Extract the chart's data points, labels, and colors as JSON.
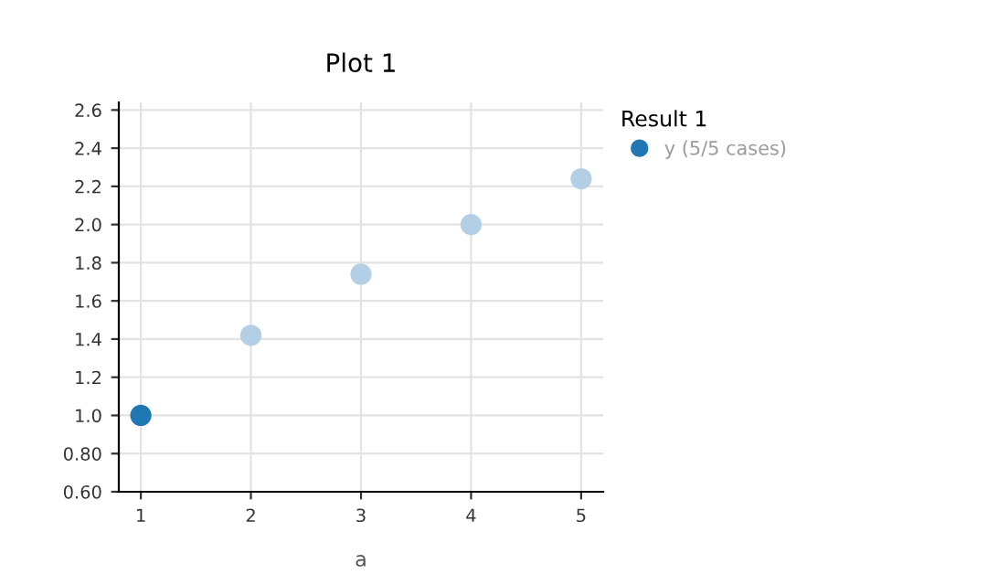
{
  "chart_data": {
    "type": "scatter",
    "title": "Plot 1",
    "xlabel": "a",
    "legend_title": "Result 1",
    "x": [
      1,
      2,
      3,
      4,
      5
    ],
    "series": [
      {
        "name": "y (5/5 cases)",
        "color": "#1f77b4",
        "colors": [
          "#1f77b4",
          "#b3cfe6",
          "#b3cfe6",
          "#b3cfe6",
          "#b3cfe6"
        ],
        "values": [
          1.0,
          1.42,
          1.74,
          2.0,
          2.24
        ]
      }
    ],
    "xlim": [
      0.8,
      5.2
    ],
    "xticks": [
      1,
      2,
      3,
      4,
      5
    ],
    "ylim": [
      0.6,
      2.64
    ],
    "yticks": [
      {
        "value": 0.6,
        "label": "0.60"
      },
      {
        "value": 0.8,
        "label": "0.80"
      },
      {
        "value": 1.0,
        "label": "1.0"
      },
      {
        "value": 1.2,
        "label": "1.2"
      },
      {
        "value": 1.4,
        "label": "1.4"
      },
      {
        "value": 1.6,
        "label": "1.6"
      },
      {
        "value": 1.8,
        "label": "1.8"
      },
      {
        "value": 2.0,
        "label": "2.0"
      },
      {
        "value": 2.2,
        "label": "2.2"
      },
      {
        "value": 2.4,
        "label": "2.4"
      },
      {
        "value": 2.6,
        "label": "2.6"
      }
    ],
    "grid": true,
    "legend": "top right",
    "marker": "circle"
  }
}
